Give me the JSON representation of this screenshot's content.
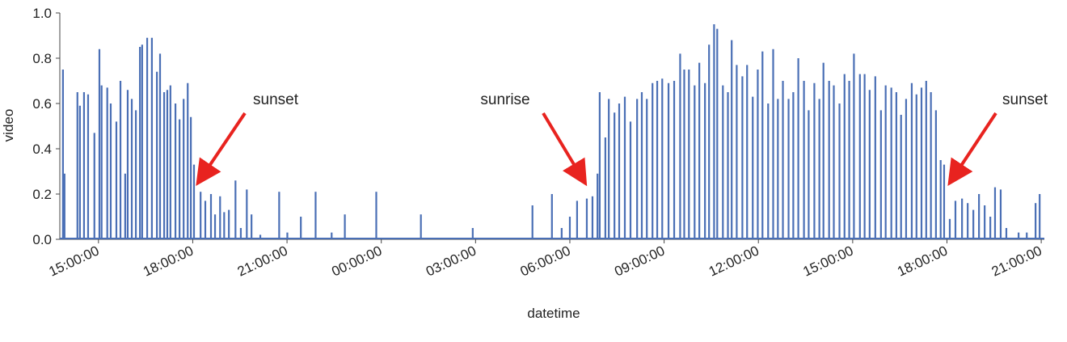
{
  "chart_data": {
    "type": "stem",
    "x_label": "datetime",
    "y_label": "video",
    "color": "#4a6fb5",
    "annotations": [
      "sunset",
      "sunrise",
      "sunset"
    ],
    "xlim": [
      13.77,
      45.1
    ],
    "ylim": [
      0,
      1
    ],
    "xticks": [
      {
        "value": 15,
        "label": "15:00:00"
      },
      {
        "value": 18,
        "label": "18:00:00"
      },
      {
        "value": 21,
        "label": "21:00:00"
      },
      {
        "value": 24,
        "label": "00:00:00"
      },
      {
        "value": 27,
        "label": "03:00:00"
      },
      {
        "value": 30,
        "label": "06:00:00"
      },
      {
        "value": 33,
        "label": "09:00:00"
      },
      {
        "value": 36,
        "label": "12:00:00"
      },
      {
        "value": 39,
        "label": "15:00:00"
      },
      {
        "value": 42,
        "label": "18:00:00"
      },
      {
        "value": 45,
        "label": "21:00:00"
      }
    ],
    "yticks": [
      {
        "value": 0,
        "label": "0.0"
      },
      0.2,
      0.4,
      0.6,
      0.8,
      {
        "value": 1,
        "label": "1.0"
      }
    ],
    "x": [
      13.87,
      13.92,
      14.33,
      14.41,
      14.54,
      14.67,
      14.87,
      15.03,
      15.1,
      15.28,
      15.39,
      15.57,
      15.7,
      15.85,
      15.93,
      16.06,
      16.19,
      16.32,
      16.39,
      16.55,
      16.7,
      16.86,
      16.96,
      17.09,
      17.19,
      17.29,
      17.45,
      17.58,
      17.71,
      17.84,
      17.94,
      18.04,
      18.25,
      18.4,
      18.58,
      18.71,
      18.87,
      19.0,
      19.15,
      19.36,
      19.53,
      19.72,
      19.87,
      20.15,
      20.75,
      21.01,
      21.44,
      21.91,
      22.42,
      22.84,
      23.84,
      25.26,
      26.91,
      28.81,
      29.43,
      29.74,
      30.0,
      30.23,
      30.54,
      30.72,
      30.88,
      30.95,
      31.13,
      31.24,
      31.42,
      31.57,
      31.75,
      31.93,
      32.14,
      32.29,
      32.45,
      32.63,
      32.78,
      32.94,
      33.14,
      33.32,
      33.51,
      33.64,
      33.79,
      33.97,
      34.12,
      34.3,
      34.43,
      34.59,
      34.69,
      34.87,
      35.03,
      35.15,
      35.31,
      35.49,
      35.64,
      35.82,
      35.98,
      36.13,
      36.31,
      36.47,
      36.62,
      36.78,
      36.96,
      37.11,
      37.27,
      37.45,
      37.6,
      37.78,
      37.94,
      38.07,
      38.25,
      38.4,
      38.58,
      38.74,
      38.89,
      39.04,
      39.23,
      39.38,
      39.54,
      39.72,
      39.9,
      40.05,
      40.23,
      40.39,
      40.54,
      40.7,
      40.88,
      41.03,
      41.19,
      41.34,
      41.49,
      41.65,
      41.8,
      41.91,
      42.09,
      42.27,
      42.48,
      42.66,
      42.84,
      43.02,
      43.2,
      43.38,
      43.53,
      43.71,
      43.89,
      44.28,
      44.54,
      44.82,
      44.95
    ],
    "values": [
      0.75,
      0.29,
      0.65,
      0.59,
      0.65,
      0.64,
      0.47,
      0.84,
      0.68,
      0.67,
      0.6,
      0.52,
      0.7,
      0.29,
      0.66,
      0.62,
      0.57,
      0.85,
      0.86,
      0.89,
      0.89,
      0.74,
      0.82,
      0.65,
      0.66,
      0.68,
      0.6,
      0.53,
      0.62,
      0.69,
      0.54,
      0.33,
      0.21,
      0.17,
      0.2,
      0.11,
      0.19,
      0.12,
      0.13,
      0.26,
      0.05,
      0.22,
      0.11,
      0.02,
      0.21,
      0.03,
      0.1,
      0.21,
      0.03,
      0.11,
      0.21,
      0.11,
      0.05,
      0.15,
      0.2,
      0.05,
      0.1,
      0.17,
      0.18,
      0.19,
      0.29,
      0.65,
      0.45,
      0.62,
      0.56,
      0.6,
      0.63,
      0.52,
      0.62,
      0.65,
      0.62,
      0.69,
      0.7,
      0.71,
      0.69,
      0.7,
      0.82,
      0.75,
      0.75,
      0.68,
      0.78,
      0.69,
      0.86,
      0.95,
      0.93,
      0.68,
      0.65,
      0.88,
      0.77,
      0.72,
      0.77,
      0.63,
      0.75,
      0.83,
      0.6,
      0.84,
      0.62,
      0.7,
      0.62,
      0.65,
      0.8,
      0.7,
      0.57,
      0.69,
      0.62,
      0.78,
      0.7,
      0.68,
      0.6,
      0.73,
      0.7,
      0.82,
      0.73,
      0.73,
      0.66,
      0.72,
      0.57,
      0.68,
      0.67,
      0.65,
      0.55,
      0.62,
      0.69,
      0.64,
      0.67,
      0.7,
      0.65,
      0.57,
      0.35,
      0.33,
      0.09,
      0.17,
      0.18,
      0.16,
      0.13,
      0.2,
      0.15,
      0.1,
      0.23,
      0.22,
      0.05,
      0.03,
      0.03,
      0.16,
      0.2
    ]
  }
}
